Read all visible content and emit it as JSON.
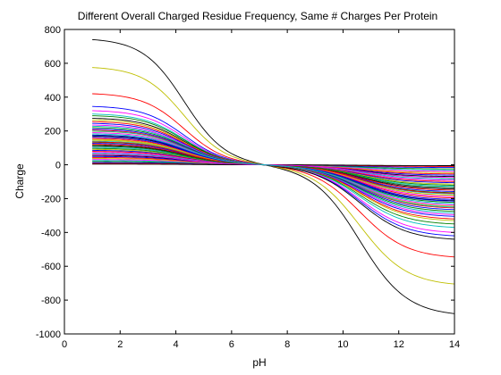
{
  "chart_data": {
    "type": "line",
    "title": "Different Overall Charged Residue Frequency, Same # Charges Per Protein",
    "xlabel": "pH",
    "ylabel": "Charge",
    "xlim": [
      0,
      14
    ],
    "ylim": [
      -1000,
      800
    ],
    "xticks": [
      0,
      2,
      4,
      6,
      8,
      10,
      12,
      14
    ],
    "yticks": [
      -1000,
      -800,
      -600,
      -400,
      -200,
      0,
      200,
      400,
      600,
      800
    ],
    "grid": false,
    "legend": "none",
    "x_range": [
      1,
      14
    ],
    "crossover_ph": 7.5,
    "series": [
      {
        "color": "#000000",
        "start": 740,
        "end": -880
      },
      {
        "color": "#bfbf00",
        "start": 575,
        "end": -705
      },
      {
        "color": "#ff0000",
        "start": 420,
        "end": -545
      },
      {
        "color": "#0000ff",
        "start": 345,
        "end": -420
      },
      {
        "color": "#ff00ff",
        "start": 320,
        "end": -400
      },
      {
        "color": "#00bfbf",
        "start": 300,
        "end": -370
      },
      {
        "color": "#008000",
        "start": 290,
        "end": -350
      },
      {
        "color": "#000000",
        "start": 275,
        "end": -440
      },
      {
        "color": "#bfbf00",
        "start": 265,
        "end": -330
      },
      {
        "color": "#ff0000",
        "start": 255,
        "end": -320
      },
      {
        "color": "#0000ff",
        "start": 245,
        "end": -305
      },
      {
        "color": "#ff00ff",
        "start": 235,
        "end": -295
      },
      {
        "color": "#00bfbf",
        "start": 228,
        "end": -285
      },
      {
        "color": "#008000",
        "start": 220,
        "end": -275
      },
      {
        "color": "#0000ff",
        "start": 212,
        "end": -265
      },
      {
        "color": "#ff0000",
        "start": 205,
        "end": -255
      },
      {
        "color": "#bfbf00",
        "start": 198,
        "end": -245
      },
      {
        "color": "#ff00ff",
        "start": 190,
        "end": -238
      },
      {
        "color": "#00bfbf",
        "start": 183,
        "end": -230
      },
      {
        "color": "#008000",
        "start": 176,
        "end": -222
      },
      {
        "color": "#000000",
        "start": 170,
        "end": -212
      },
      {
        "color": "#0000ff",
        "start": 163,
        "end": -205
      },
      {
        "color": "#ff0000",
        "start": 157,
        "end": -196
      },
      {
        "color": "#ff00ff",
        "start": 151,
        "end": -188
      },
      {
        "color": "#bfbf00",
        "start": 145,
        "end": -180
      },
      {
        "color": "#00bfbf",
        "start": 139,
        "end": -172
      },
      {
        "color": "#008000",
        "start": 133,
        "end": -165
      },
      {
        "color": "#0000ff",
        "start": 127,
        "end": -158
      },
      {
        "color": "#ff0000",
        "start": 121,
        "end": -150
      },
      {
        "color": "#000000",
        "start": 115,
        "end": -143
      },
      {
        "color": "#ff00ff",
        "start": 109,
        "end": -136
      },
      {
        "color": "#00bfbf",
        "start": 103,
        "end": -128
      },
      {
        "color": "#008000",
        "start": 97,
        "end": -121
      },
      {
        "color": "#bfbf00",
        "start": 91,
        "end": -114
      },
      {
        "color": "#0000ff",
        "start": 85,
        "end": -106
      },
      {
        "color": "#ff0000",
        "start": 79,
        "end": -99
      },
      {
        "color": "#ff00ff",
        "start": 73,
        "end": -91
      },
      {
        "color": "#00bfbf",
        "start": 67,
        "end": -84
      },
      {
        "color": "#008000",
        "start": 61,
        "end": -76
      },
      {
        "color": "#000000",
        "start": 55,
        "end": -69
      },
      {
        "color": "#0000ff",
        "start": 49,
        "end": -61
      },
      {
        "color": "#ff0000",
        "start": 43,
        "end": -54
      },
      {
        "color": "#bfbf00",
        "start": 37,
        "end": -46
      },
      {
        "color": "#ff00ff",
        "start": 31,
        "end": -39
      },
      {
        "color": "#00bfbf",
        "start": 25,
        "end": -31
      },
      {
        "color": "#008000",
        "start": 19,
        "end": -24
      },
      {
        "color": "#0000ff",
        "start": 13,
        "end": -16
      },
      {
        "color": "#ff0000",
        "start": 8,
        "end": -10
      },
      {
        "color": "#000000",
        "start": 4,
        "end": -5
      },
      {
        "color": "#bfbf00",
        "start": 150,
        "end": -180
      },
      {
        "color": "#0000ff",
        "start": 175,
        "end": -215
      },
      {
        "color": "#ff0000",
        "start": 135,
        "end": -168
      },
      {
        "color": "#008000",
        "start": 110,
        "end": -135
      },
      {
        "color": "#ff00ff",
        "start": 60,
        "end": -75
      },
      {
        "color": "#00bfbf",
        "start": 200,
        "end": -250
      }
    ]
  }
}
